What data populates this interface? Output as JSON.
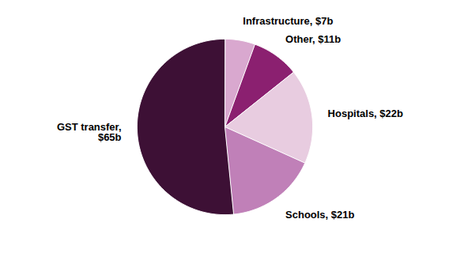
{
  "chart_data": {
    "type": "pie",
    "categories": [
      "Infrastructure, $7b",
      "Other, $11b",
      "Hospitals, $22b",
      "Schools, $21b",
      "GST transfer,\n$65b"
    ],
    "values": [
      7,
      11,
      22,
      21,
      65
    ],
    "colors": [
      "#d9a8cf",
      "#8b2070",
      "#e8cce0",
      "#c080b8",
      "#3d1035"
    ]
  }
}
